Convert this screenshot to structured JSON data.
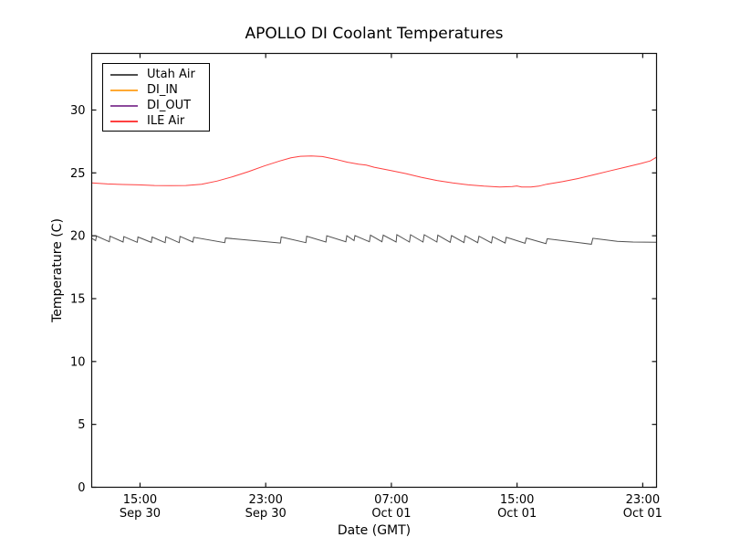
{
  "chart_data": {
    "type": "line",
    "title": "APOLLO DI Coolant Temperatures",
    "xlabel": "Date (GMT)",
    "ylabel": "Temperature (C)",
    "grid": false,
    "legend_position": "upper-left",
    "x_axis": {
      "range_hours": [
        0,
        36
      ],
      "ticks": [
        {
          "hours": 3.08,
          "time": "15:00",
          "date": "Sep 30"
        },
        {
          "hours": 11.09,
          "time": "23:00",
          "date": "Sep 30"
        },
        {
          "hours": 19.1,
          "time": "07:00",
          "date": "Oct 01"
        },
        {
          "hours": 27.11,
          "time": "15:00",
          "date": "Oct 01"
        },
        {
          "hours": 35.12,
          "time": "23:00",
          "date": "Oct 01"
        }
      ]
    },
    "y_axis": {
      "range": [
        0,
        34.5
      ],
      "ticks": [
        0,
        5,
        10,
        15,
        20,
        25,
        30
      ]
    },
    "series": [
      {
        "name": "Utah Air",
        "color": "#4f4f4f",
        "points": [
          [
            0,
            19.8
          ],
          [
            0.25,
            19.62
          ],
          [
            0.3,
            19.98
          ],
          [
            1.12,
            19.52
          ],
          [
            1.17,
            19.97
          ],
          [
            2.0,
            19.5
          ],
          [
            2.05,
            19.93
          ],
          [
            2.9,
            19.48
          ],
          [
            2.95,
            19.9
          ],
          [
            3.8,
            19.47
          ],
          [
            3.85,
            19.9
          ],
          [
            4.68,
            19.45
          ],
          [
            4.73,
            19.92
          ],
          [
            5.58,
            19.45
          ],
          [
            5.63,
            19.95
          ],
          [
            6.45,
            19.5
          ],
          [
            6.5,
            19.88
          ],
          [
            8.48,
            19.45
          ],
          [
            8.53,
            19.82
          ],
          [
            12.03,
            19.42
          ],
          [
            12.08,
            19.9
          ],
          [
            13.65,
            19.45
          ],
          [
            13.7,
            19.97
          ],
          [
            14.93,
            19.5
          ],
          [
            14.98,
            20.0
          ],
          [
            16.2,
            19.52
          ],
          [
            16.26,
            20.0
          ],
          [
            16.72,
            19.62
          ],
          [
            16.78,
            20.02
          ],
          [
            17.7,
            19.52
          ],
          [
            17.77,
            20.05
          ],
          [
            18.5,
            19.52
          ],
          [
            18.58,
            20.05
          ],
          [
            19.4,
            19.5
          ],
          [
            19.45,
            20.08
          ],
          [
            20.25,
            19.5
          ],
          [
            20.32,
            20.08
          ],
          [
            21.12,
            19.5
          ],
          [
            21.19,
            20.08
          ],
          [
            22.0,
            19.5
          ],
          [
            22.06,
            20.05
          ],
          [
            22.85,
            19.48
          ],
          [
            22.93,
            20.02
          ],
          [
            23.73,
            19.46
          ],
          [
            23.8,
            20.0
          ],
          [
            24.6,
            19.45
          ],
          [
            24.68,
            19.97
          ],
          [
            25.48,
            19.43
          ],
          [
            25.55,
            19.93
          ],
          [
            26.35,
            19.42
          ],
          [
            26.42,
            19.88
          ],
          [
            27.62,
            19.4
          ],
          [
            27.7,
            19.82
          ],
          [
            28.95,
            19.38
          ],
          [
            29.03,
            19.76
          ],
          [
            31.85,
            19.33
          ],
          [
            31.94,
            19.8
          ],
          [
            33.5,
            19.55
          ],
          [
            34.5,
            19.5
          ],
          [
            36,
            19.48
          ]
        ]
      },
      {
        "name": "DI_IN",
        "color": "#ffa933",
        "points": [
          [
            0,
            0
          ],
          [
            36,
            0
          ]
        ]
      },
      {
        "name": "DI_OUT",
        "color": "#8c4a9c",
        "points": [
          [
            0,
            0
          ],
          [
            36,
            0
          ]
        ]
      },
      {
        "name": "ILE Air",
        "color": "#ff4040",
        "points": [
          [
            0,
            24.2
          ],
          [
            1,
            24.12
          ],
          [
            2,
            24.08
          ],
          [
            3,
            24.05
          ],
          [
            4,
            24.0
          ],
          [
            5,
            23.98
          ],
          [
            6,
            24.0
          ],
          [
            7,
            24.1
          ],
          [
            8,
            24.35
          ],
          [
            9,
            24.7
          ],
          [
            10,
            25.1
          ],
          [
            11,
            25.55
          ],
          [
            12,
            25.95
          ],
          [
            12.7,
            26.2
          ],
          [
            13.3,
            26.32
          ],
          [
            14,
            26.35
          ],
          [
            14.7,
            26.3
          ],
          [
            15.5,
            26.1
          ],
          [
            16.3,
            25.85
          ],
          [
            17,
            25.7
          ],
          [
            17.5,
            25.62
          ],
          [
            18,
            25.45
          ],
          [
            19,
            25.2
          ],
          [
            20,
            24.95
          ],
          [
            21,
            24.65
          ],
          [
            22,
            24.4
          ],
          [
            23,
            24.2
          ],
          [
            24,
            24.05
          ],
          [
            25,
            23.95
          ],
          [
            26,
            23.88
          ],
          [
            26.8,
            23.92
          ],
          [
            27.1,
            23.96
          ],
          [
            27.4,
            23.88
          ],
          [
            28,
            23.88
          ],
          [
            28.5,
            23.95
          ],
          [
            29,
            24.1
          ],
          [
            30,
            24.3
          ],
          [
            31,
            24.55
          ],
          [
            32,
            24.85
          ],
          [
            33,
            25.15
          ],
          [
            34,
            25.45
          ],
          [
            35,
            25.75
          ],
          [
            35.6,
            25.95
          ],
          [
            36,
            26.25
          ]
        ]
      }
    ]
  }
}
